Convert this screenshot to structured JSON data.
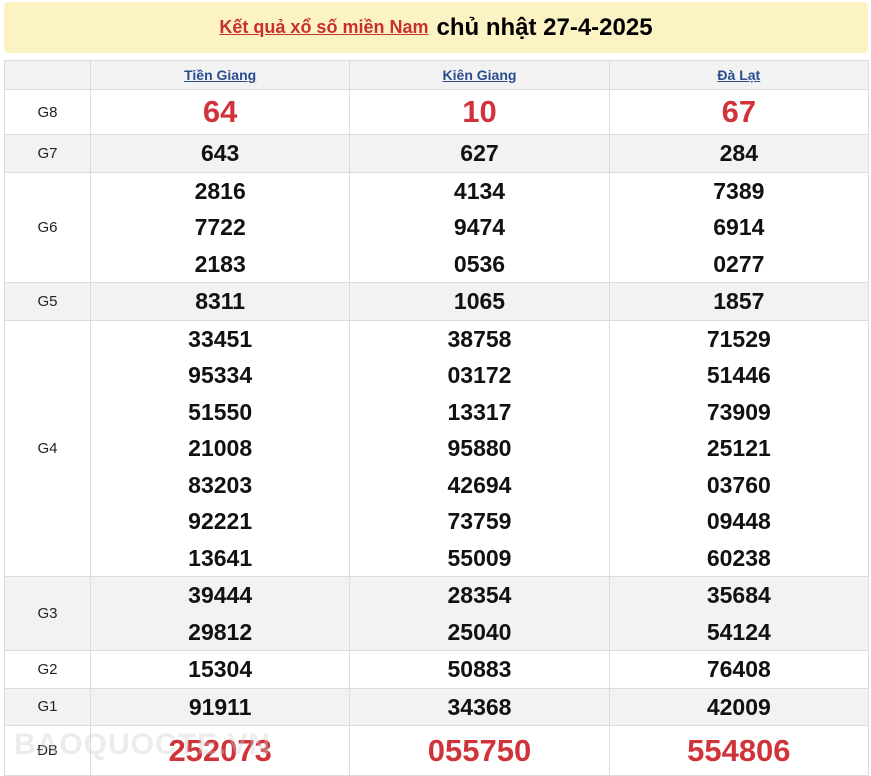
{
  "header": {
    "link": "Kết quả xổ số miền Nam",
    "date": "chủ nhật 27-4-2025"
  },
  "provinces": [
    "Tiền Giang",
    "Kiên Giang",
    "Đà Lạt"
  ],
  "rows": [
    {
      "prize": "G8",
      "style": "red",
      "values": [
        [
          "64"
        ],
        [
          "10"
        ],
        [
          "67"
        ]
      ]
    },
    {
      "prize": "G7",
      "values": [
        [
          "643"
        ],
        [
          "627"
        ],
        [
          "284"
        ]
      ]
    },
    {
      "prize": "G6",
      "values": [
        [
          "2816",
          "7722",
          "2183"
        ],
        [
          "4134",
          "9474",
          "0536"
        ],
        [
          "7389",
          "6914",
          "0277"
        ]
      ]
    },
    {
      "prize": "G5",
      "values": [
        [
          "8311"
        ],
        [
          "1065"
        ],
        [
          "1857"
        ]
      ]
    },
    {
      "prize": "G4",
      "values": [
        [
          "33451",
          "95334",
          "51550",
          "21008",
          "83203",
          "92221",
          "13641"
        ],
        [
          "38758",
          "03172",
          "13317",
          "95880",
          "42694",
          "73759",
          "55009"
        ],
        [
          "71529",
          "51446",
          "73909",
          "25121",
          "03760",
          "09448",
          "60238"
        ]
      ]
    },
    {
      "prize": "G3",
      "values": [
        [
          "39444",
          "29812"
        ],
        [
          "28354",
          "25040"
        ],
        [
          "35684",
          "54124"
        ]
      ]
    },
    {
      "prize": "G2",
      "values": [
        [
          "15304"
        ],
        [
          "50883"
        ],
        [
          "76408"
        ]
      ]
    },
    {
      "prize": "G1",
      "values": [
        [
          "91911"
        ],
        [
          "34368"
        ],
        [
          "42009"
        ]
      ]
    },
    {
      "prize": "ĐB",
      "style": "db",
      "values": [
        [
          "252073"
        ],
        [
          "055750"
        ],
        [
          "554806"
        ]
      ]
    }
  ],
  "watermark": "BAOQUOCTE.VN",
  "colors": {
    "accent_red": "#d0343a",
    "header_bg": "#fbf3c4",
    "link_blue": "#2a4d8f"
  }
}
